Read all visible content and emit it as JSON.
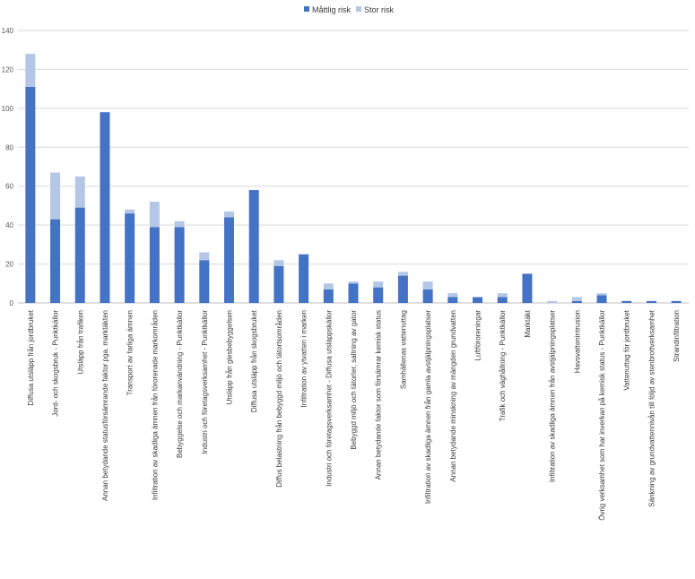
{
  "chart_data": {
    "type": "bar",
    "stacked": true,
    "title": "",
    "xlabel": "",
    "ylabel": "",
    "ylim": [
      0,
      140
    ],
    "yticks": [
      0,
      20,
      40,
      60,
      80,
      100,
      120,
      140
    ],
    "grid": true,
    "legend_position": "top",
    "categories": [
      "Diffusa utsläpp från jordbruket",
      "Jord- och skogsbruk - Punktkällor",
      "Utsläpp från trafiken",
      "Annan betydande statusförsämrande faktor  pga. marktäkten",
      "Transport av farliga ämnen",
      "Infiltration av skadliga ämnen från förorenade markområden",
      "Bebyggelse och markanvändning - Punktkällor",
      "Industri och företagsverksamhet - Punktkällor",
      "Utsläpp från glesbebyggelsen",
      "Diffusa utsläpp från skogsbruket",
      "Diffus belastning från bebyggd miljö och tätortsområden",
      "Infiltration av ytvatten i marken",
      "Industri och företagsverksamhet - Diffusa utsläppskällor",
      "Bebyggd miljö och tätorter, saltning av gator",
      "Annan betydande faktor som försämrar kemisk status",
      "Samhällenas vattenuttag",
      "Infiltration av skadliga ämnen från gamla avstjälpningsplatser",
      "Annan betydande minskning av mängden grundvatten",
      "Luftföroreningar",
      "Trafik och väghållning - Punktkällor",
      "Marktäkt",
      "Infiltration av skadliga ämnen från avstjälpningsplatser",
      "Havsvattenintrusion",
      "Övrig verksamhet som har inverkan på kemisk status - Punktkällor",
      "Vattenuttag för jordbruket",
      "Sänkning av grundvattennivån till följd av stenbrottverksamhet",
      "Strandinfiltration"
    ],
    "series": [
      {
        "name": "Måttlig risk",
        "color": "#4472C4",
        "values": [
          111,
          43,
          49,
          98,
          46,
          39,
          39,
          22,
          44,
          58,
          19,
          25,
          7,
          10,
          8,
          14,
          7,
          3,
          3,
          3,
          15,
          0,
          1,
          4,
          1,
          1,
          1
        ]
      },
      {
        "name": "Stor risk",
        "color": "#B4C7E7",
        "values": [
          17,
          24,
          16,
          0,
          2,
          13,
          3,
          4,
          3,
          0,
          3,
          0,
          3,
          1,
          3,
          2,
          4,
          2,
          0,
          2,
          0,
          1,
          2,
          1,
          0,
          0,
          0
        ]
      }
    ]
  }
}
